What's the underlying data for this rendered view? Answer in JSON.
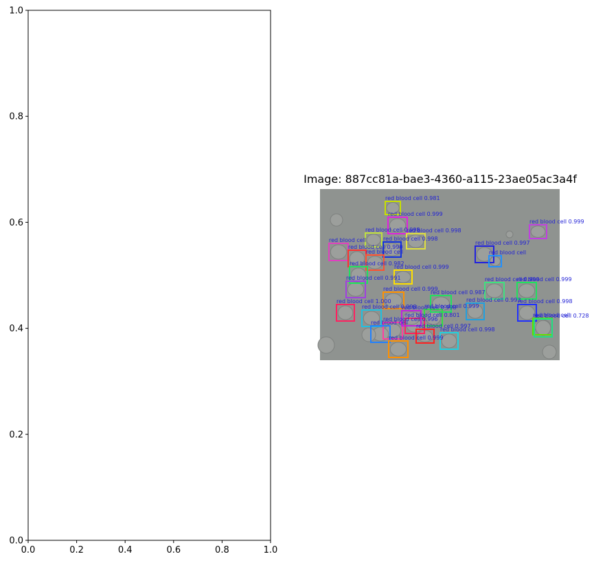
{
  "chart_data": [
    {
      "type": "scatter",
      "title": "",
      "xlabel": "",
      "ylabel": "",
      "xlim": [
        0,
        1
      ],
      "ylim": [
        0,
        1
      ],
      "x_ticks": [
        "0.0",
        "0.2",
        "0.4",
        "0.6",
        "0.8",
        "1.0"
      ],
      "y_ticks": [
        "0.0",
        "0.2",
        "0.4",
        "0.6",
        "0.8",
        "1.0"
      ],
      "series": []
    },
    {
      "type": "image",
      "title": "Image: 887cc81a-bae3-4360-a115-23ae05ac3a4f",
      "label_color": "#1f1fd6",
      "annotations": [
        {
          "label": "red blood cell 0.981",
          "color": "#c8e000"
        },
        {
          "label": "red blood cell 0.999",
          "color": "#e020e0"
        },
        {
          "label": "red blood cell 0.999",
          "color": "#c040e0"
        },
        {
          "label": "red blood cell 0.998",
          "color": "#e0e040"
        },
        {
          "label": "red blood cell 0.998",
          "color": "#c0e040"
        },
        {
          "label": "red blood cell 0.998",
          "color": "#1030e0"
        },
        {
          "label": "red blood cell",
          "color": "#e040c0"
        },
        {
          "label": "red blood cell 0.990",
          "color": "#ff3030"
        },
        {
          "label": "red blood cell",
          "color": "#ff5030"
        },
        {
          "label": "red blood cell 0.982",
          "color": "#20e060"
        },
        {
          "label": "red blood cell 0.999",
          "color": "#ffe000"
        },
        {
          "label": "red blood cell 0.997",
          "color": "#2020e0"
        },
        {
          "label": "red blood cell",
          "color": "#2090ff"
        },
        {
          "label": "red blood cell 0.991",
          "color": "#a040e0"
        },
        {
          "label": "red blood cell 0.999",
          "color": "#ff9000"
        },
        {
          "label": "red blood cell 0.987",
          "color": "#20e060"
        },
        {
          "label": "red blood cell 0.999",
          "color": "#20e060"
        },
        {
          "label": "red blood cell 0.999",
          "color": "#40e080"
        },
        {
          "label": "red blood cell 1.000",
          "color": "#ff2060"
        },
        {
          "label": "red blood cell 0.998",
          "color": "#20c0e0"
        },
        {
          "label": "red blood cell 0.993",
          "color": "#20a0e0"
        },
        {
          "label": "red blood cell 0.999",
          "color": "#30e040"
        },
        {
          "label": "red blood cell 0.998",
          "color": "#2030ff"
        },
        {
          "label": "red blood cell 0.801",
          "color": "#ff2060"
        },
        {
          "label": "red blood cell 0.996",
          "color": "#ff40a0"
        },
        {
          "label": "red blood cell 0.997",
          "color": "#ff2020"
        },
        {
          "label": "red blood cell",
          "color": "#2080ff"
        },
        {
          "label": "red blood cell 0.998",
          "color": "#20d0e0"
        },
        {
          "label": "red blood cell 0.999",
          "color": "#ff9000"
        },
        {
          "label": "red blood cell",
          "color": "#60e000"
        },
        {
          "label": "red blood cell 0.998",
          "color": "#c020e0"
        },
        {
          "label": "red blood cell 0.728",
          "color": "#20e080"
        }
      ]
    }
  ]
}
